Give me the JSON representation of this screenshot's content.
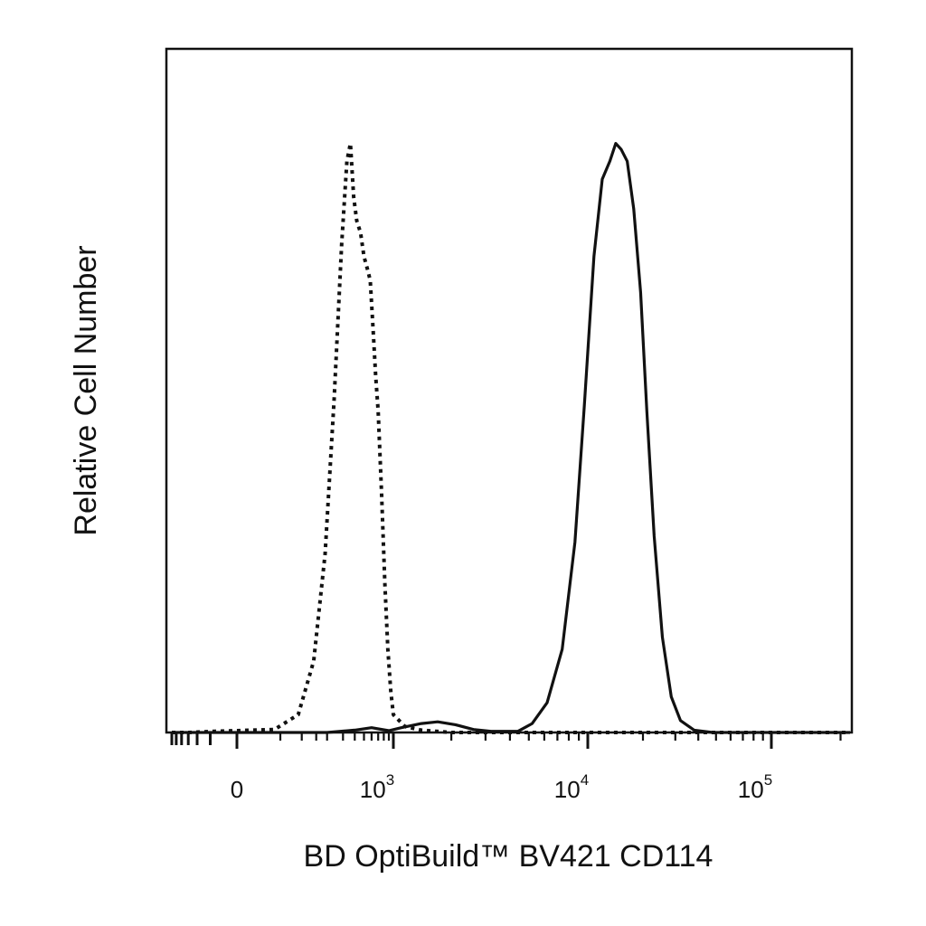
{
  "chart_data": {
    "type": "line",
    "title": "",
    "xlabel": "BD OptiBuild™ BV421 CD114",
    "ylabel": "Relative Cell Number",
    "x_scale": "biexponential",
    "xlim": [
      -300,
      220000
    ],
    "ylim": [
      0,
      100
    ],
    "grid": false,
    "legend": "none",
    "x_ticks": [
      {
        "value": 0,
        "base": "0",
        "exp": ""
      },
      {
        "value": 1000,
        "base": "10",
        "exp": "3"
      },
      {
        "value": 10000,
        "base": "10",
        "exp": "4"
      },
      {
        "value": 100000,
        "base": "10",
        "exp": "5"
      }
    ],
    "series": [
      {
        "style": "dotted",
        "color": "#111111",
        "points": [
          [
            -300,
            0
          ],
          [
            -150,
            0
          ],
          [
            -40,
            0.2
          ],
          [
            40,
            0.5
          ],
          [
            90,
            3
          ],
          [
            140,
            12
          ],
          [
            190,
            30
          ],
          [
            240,
            56
          ],
          [
            290,
            82
          ],
          [
            330,
            96
          ],
          [
            360,
            99
          ],
          [
            390,
            90
          ],
          [
            420,
            86
          ],
          [
            460,
            84
          ],
          [
            500,
            80
          ],
          [
            540,
            78
          ],
          [
            580,
            76
          ],
          [
            620,
            68
          ],
          [
            660,
            60
          ],
          [
            700,
            54
          ],
          [
            760,
            40
          ],
          [
            820,
            25
          ],
          [
            880,
            14
          ],
          [
            940,
            7
          ],
          [
            1000,
            3
          ],
          [
            1150,
            1
          ],
          [
            1400,
            0.4
          ],
          [
            2000,
            0
          ],
          [
            220000,
            0
          ]
        ]
      },
      {
        "style": "solid",
        "color": "#111111",
        "points": [
          [
            -300,
            0
          ],
          [
            200,
            0
          ],
          [
            400,
            0.4
          ],
          [
            600,
            0.8
          ],
          [
            900,
            0.3
          ],
          [
            1100,
            0.8
          ],
          [
            1400,
            1.5
          ],
          [
            1700,
            1.8
          ],
          [
            2100,
            1.3
          ],
          [
            2600,
            0.5
          ],
          [
            3200,
            0.2
          ],
          [
            4400,
            0.2
          ],
          [
            5200,
            1.5
          ],
          [
            6200,
            5
          ],
          [
            7400,
            14
          ],
          [
            8600,
            32
          ],
          [
            9600,
            55
          ],
          [
            10800,
            80
          ],
          [
            12000,
            93
          ],
          [
            13200,
            96
          ],
          [
            14200,
            99
          ],
          [
            15200,
            98
          ],
          [
            16400,
            96
          ],
          [
            17800,
            88
          ],
          [
            19400,
            74
          ],
          [
            21000,
            54
          ],
          [
            23000,
            33
          ],
          [
            25500,
            16
          ],
          [
            28500,
            6
          ],
          [
            32000,
            2
          ],
          [
            38000,
            0.4
          ],
          [
            48000,
            0
          ],
          [
            220000,
            0
          ]
        ]
      }
    ]
  }
}
